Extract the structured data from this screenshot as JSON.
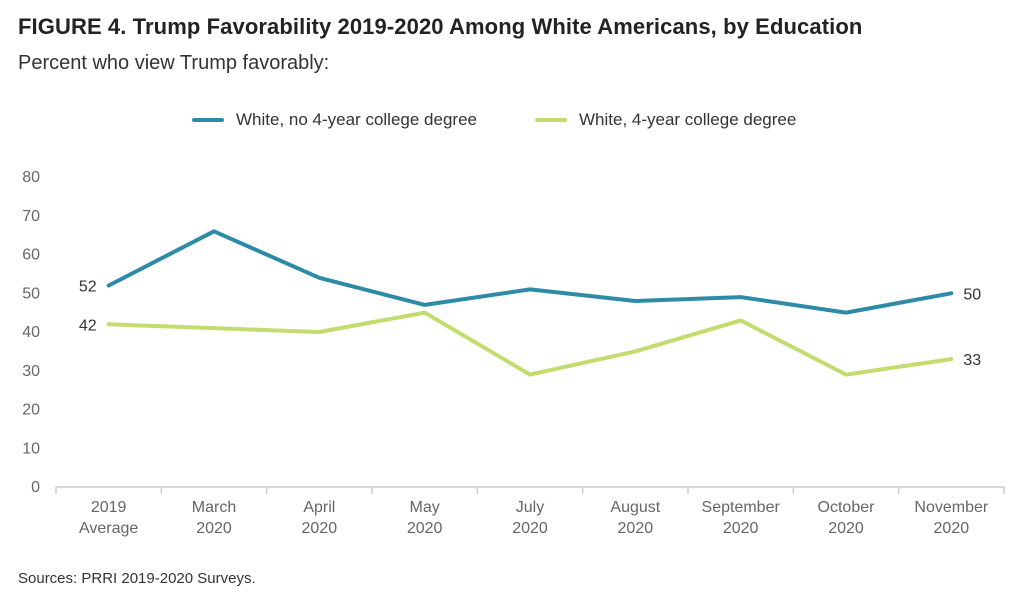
{
  "figure": {
    "title": "FIGURE 4. Trump Favorability 2019-2020 Among White Americans, by Education",
    "subtitle": "Percent who view Trump favorably:",
    "source": "Sources: PRRI 2019-2020 Surveys."
  },
  "chart_data": {
    "type": "line",
    "title": "FIGURE 4. Trump Favorability 2019-2020 Among White Americans, by Education",
    "subtitle": "Percent who view Trump favorably:",
    "categories": [
      [
        "2019",
        "Average"
      ],
      [
        "March",
        "2020"
      ],
      [
        "April",
        "2020"
      ],
      [
        "May",
        "2020"
      ],
      [
        "July",
        "2020"
      ],
      [
        "August",
        "2020"
      ],
      [
        "September",
        "2020"
      ],
      [
        "October",
        "2020"
      ],
      [
        "November",
        "2020"
      ]
    ],
    "yticks": [
      "0",
      "10",
      "20",
      "30",
      "40",
      "50",
      "60",
      "70",
      "80"
    ],
    "ylim": [
      0,
      80
    ],
    "grid": false,
    "legend_position": "top",
    "series": [
      {
        "name": "White, no 4-year college degree",
        "color": "#2e8ba8",
        "values": [
          52,
          66,
          54,
          47,
          51,
          48,
          49,
          45,
          50
        ],
        "labels": {
          "first": "52",
          "last": "50"
        }
      },
      {
        "name": "White, 4-year college degree",
        "color": "#c2dc6e",
        "values": [
          42,
          41,
          40,
          45,
          29,
          35,
          43,
          29,
          33
        ],
        "labels": {
          "first": "42",
          "last": "33"
        }
      }
    ]
  }
}
